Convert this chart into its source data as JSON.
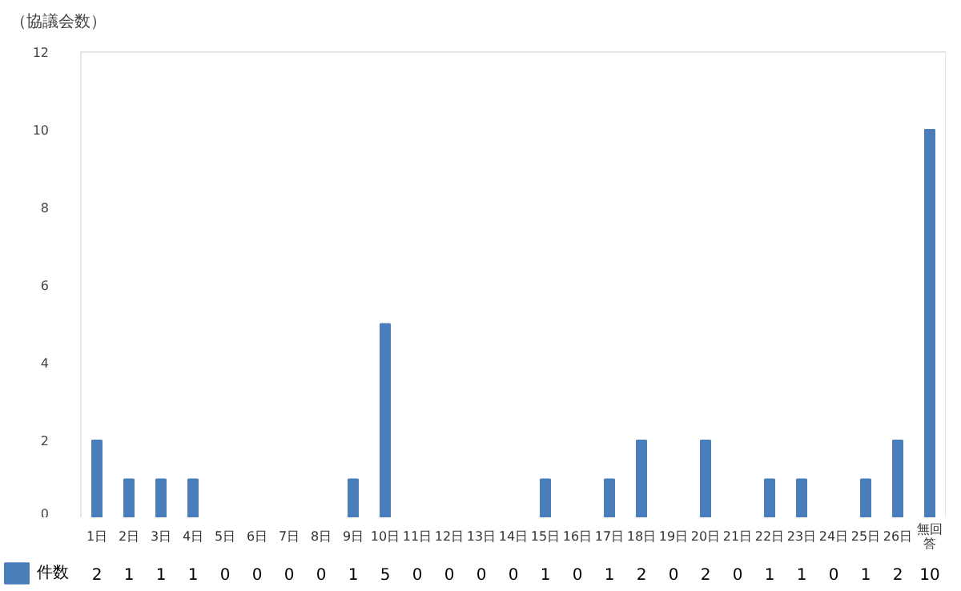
{
  "chart_data": {
    "type": "bar",
    "ylabel": "（協議会数）",
    "categories": [
      "1日",
      "2日",
      "3日",
      "4日",
      "5日",
      "6日",
      "7日",
      "8日",
      "9日",
      "10日",
      "11日",
      "12日",
      "13日",
      "14日",
      "15日",
      "16日",
      "17日",
      "18日",
      "19日",
      "20日",
      "21日",
      "22日",
      "23日",
      "24日",
      "25日",
      "26日",
      "無回答"
    ],
    "series": [
      {
        "name": "件数",
        "color": "#4a7ebb",
        "values": [
          2,
          1,
          1,
          1,
          0,
          0,
          0,
          0,
          1,
          5,
          0,
          0,
          0,
          0,
          1,
          0,
          1,
          2,
          0,
          2,
          0,
          1,
          1,
          0,
          1,
          2,
          10
        ]
      }
    ],
    "ylim": [
      0,
      12
    ],
    "yticks": [
      0,
      2,
      4,
      6,
      8,
      10,
      12
    ],
    "data_labels": true,
    "legend": "bottom left",
    "grid": false
  }
}
